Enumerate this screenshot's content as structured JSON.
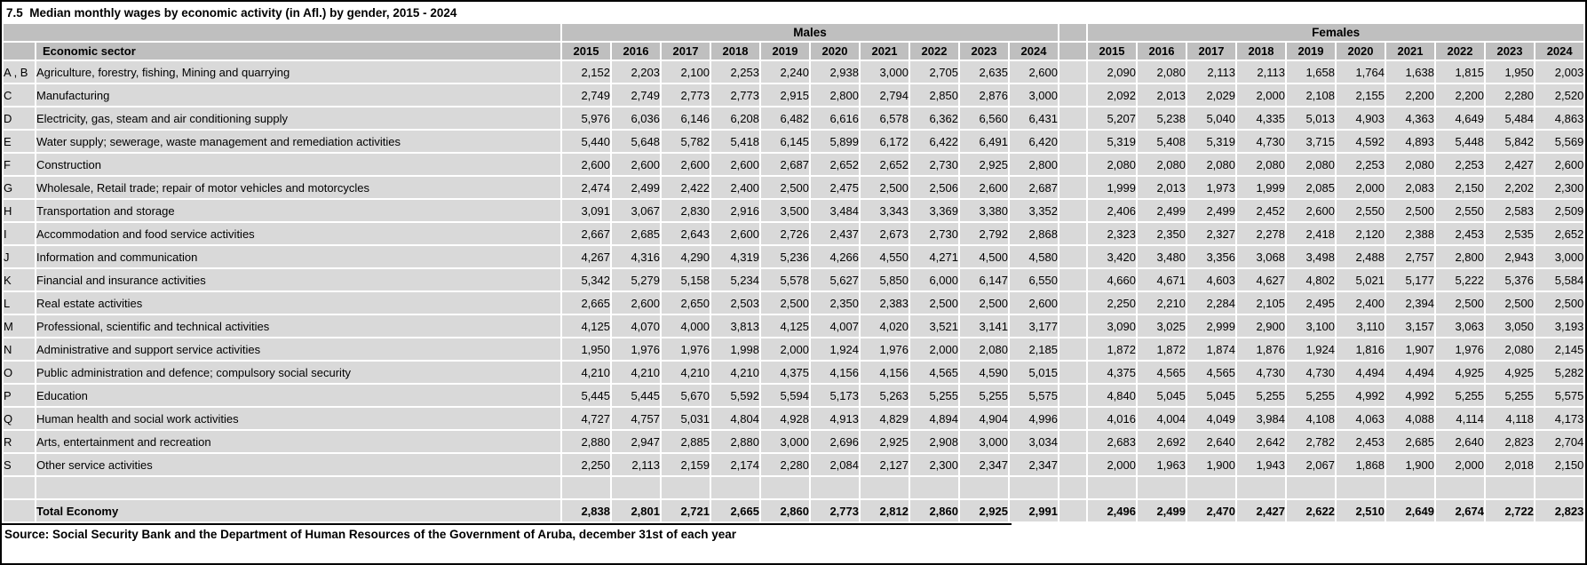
{
  "title": "7.5  Median monthly wages by economic activity (in Afl.) by gender, 2015 - 2024",
  "colors": {
    "header_fill": "#bfbfbf",
    "cell_fill": "#d9d9d9",
    "gridline": "#ffffff",
    "border": "#000000",
    "text": "#000000"
  },
  "table": {
    "sector_header": "Economic sector",
    "groups": {
      "males": "Males",
      "females": "Females"
    },
    "years": [
      "2015",
      "2016",
      "2017",
      "2018",
      "2019",
      "2020",
      "2021",
      "2022",
      "2023",
      "2024"
    ],
    "rows": [
      {
        "code": "A , B",
        "name": "Agriculture, forestry, fishing, Mining and quarrying",
        "males": [
          "2,152",
          "2,203",
          "2,100",
          "2,253",
          "2,240",
          "2,938",
          "3,000",
          "2,705",
          "2,635",
          "2,600"
        ],
        "females": [
          "2,090",
          "2,080",
          "2,113",
          "2,113",
          "1,658",
          "1,764",
          "1,638",
          "1,815",
          "1,950",
          "2,003"
        ]
      },
      {
        "code": "C",
        "name": "Manufacturing",
        "males": [
          "2,749",
          "2,749",
          "2,773",
          "2,773",
          "2,915",
          "2,800",
          "2,794",
          "2,850",
          "2,876",
          "3,000"
        ],
        "females": [
          "2,092",
          "2,013",
          "2,029",
          "2,000",
          "2,108",
          "2,155",
          "2,200",
          "2,200",
          "2,280",
          "2,520"
        ]
      },
      {
        "code": "D",
        "name": "Electricity, gas, steam and air conditioning supply",
        "males": [
          "5,976",
          "6,036",
          "6,146",
          "6,208",
          "6,482",
          "6,616",
          "6,578",
          "6,362",
          "6,560",
          "6,431"
        ],
        "females": [
          "5,207",
          "5,238",
          "5,040",
          "4,335",
          "5,013",
          "4,903",
          "4,363",
          "4,649",
          "5,484",
          "4,863"
        ]
      },
      {
        "code": "E",
        "name": "Water supply; sewerage, waste management and remediation activities",
        "males": [
          "5,440",
          "5,648",
          "5,782",
          "5,418",
          "6,145",
          "5,899",
          "6,172",
          "6,422",
          "6,491",
          "6,420"
        ],
        "females": [
          "5,319",
          "5,408",
          "5,319",
          "4,730",
          "3,715",
          "4,592",
          "4,893",
          "5,448",
          "5,842",
          "5,569"
        ]
      },
      {
        "code": "F",
        "name": "Construction",
        "males": [
          "2,600",
          "2,600",
          "2,600",
          "2,600",
          "2,687",
          "2,652",
          "2,652",
          "2,730",
          "2,925",
          "2,800"
        ],
        "females": [
          "2,080",
          "2,080",
          "2,080",
          "2,080",
          "2,080",
          "2,253",
          "2,080",
          "2,253",
          "2,427",
          "2,600"
        ]
      },
      {
        "code": "G",
        "name": "Wholesale, Retail trade; repair of motor vehicles and motorcycles",
        "males": [
          "2,474",
          "2,499",
          "2,422",
          "2,400",
          "2,500",
          "2,475",
          "2,500",
          "2,506",
          "2,600",
          "2,687"
        ],
        "females": [
          "1,999",
          "2,013",
          "1,973",
          "1,999",
          "2,085",
          "2,000",
          "2,083",
          "2,150",
          "2,202",
          "2,300"
        ]
      },
      {
        "code": "H",
        "name": "Transportation and storage",
        "males": [
          "3,091",
          "3,067",
          "2,830",
          "2,916",
          "3,500",
          "3,484",
          "3,343",
          "3,369",
          "3,380",
          "3,352"
        ],
        "females": [
          "2,406",
          "2,499",
          "2,499",
          "2,452",
          "2,600",
          "2,550",
          "2,500",
          "2,550",
          "2,583",
          "2,509"
        ]
      },
      {
        "code": "I",
        "name": "Accommodation and food service activities",
        "males": [
          "2,667",
          "2,685",
          "2,643",
          "2,600",
          "2,726",
          "2,437",
          "2,673",
          "2,730",
          "2,792",
          "2,868"
        ],
        "females": [
          "2,323",
          "2,350",
          "2,327",
          "2,278",
          "2,418",
          "2,120",
          "2,388",
          "2,453",
          "2,535",
          "2,652"
        ]
      },
      {
        "code": "J",
        "name": "Information and communication",
        "males": [
          "4,267",
          "4,316",
          "4,290",
          "4,319",
          "5,236",
          "4,266",
          "4,550",
          "4,271",
          "4,500",
          "4,580"
        ],
        "females": [
          "3,420",
          "3,480",
          "3,356",
          "3,068",
          "3,498",
          "2,488",
          "2,757",
          "2,800",
          "2,943",
          "3,000"
        ]
      },
      {
        "code": "K",
        "name": "Financial and insurance activities",
        "males": [
          "5,342",
          "5,279",
          "5,158",
          "5,234",
          "5,578",
          "5,627",
          "5,850",
          "6,000",
          "6,147",
          "6,550"
        ],
        "females": [
          "4,660",
          "4,671",
          "4,603",
          "4,627",
          "4,802",
          "5,021",
          "5,177",
          "5,222",
          "5,376",
          "5,584"
        ]
      },
      {
        "code": "L",
        "name": "Real estate activities",
        "males": [
          "2,665",
          "2,600",
          "2,650",
          "2,503",
          "2,500",
          "2,350",
          "2,383",
          "2,500",
          "2,500",
          "2,600"
        ],
        "females": [
          "2,250",
          "2,210",
          "2,284",
          "2,105",
          "2,495",
          "2,400",
          "2,394",
          "2,500",
          "2,500",
          "2,500"
        ]
      },
      {
        "code": "M",
        "name": "Professional, scientific and technical activities",
        "males": [
          "4,125",
          "4,070",
          "4,000",
          "3,813",
          "4,125",
          "4,007",
          "4,020",
          "3,521",
          "3,141",
          "3,177"
        ],
        "females": [
          "3,090",
          "3,025",
          "2,999",
          "2,900",
          "3,100",
          "3,110",
          "3,157",
          "3,063",
          "3,050",
          "3,193"
        ]
      },
      {
        "code": "N",
        "name": "Administrative and support service activities",
        "males": [
          "1,950",
          "1,976",
          "1,976",
          "1,998",
          "2,000",
          "1,924",
          "1,976",
          "2,000",
          "2,080",
          "2,185"
        ],
        "females": [
          "1,872",
          "1,872",
          "1,874",
          "1,876",
          "1,924",
          "1,816",
          "1,907",
          "1,976",
          "2,080",
          "2,145"
        ]
      },
      {
        "code": "O",
        "name": "Public administration and defence; compulsory social security",
        "males": [
          "4,210",
          "4,210",
          "4,210",
          "4,210",
          "4,375",
          "4,156",
          "4,156",
          "4,565",
          "4,590",
          "5,015"
        ],
        "females": [
          "4,375",
          "4,565",
          "4,565",
          "4,730",
          "4,730",
          "4,494",
          "4,494",
          "4,925",
          "4,925",
          "5,282"
        ]
      },
      {
        "code": "P",
        "name": "Education",
        "males": [
          "5,445",
          "5,445",
          "5,670",
          "5,592",
          "5,594",
          "5,173",
          "5,263",
          "5,255",
          "5,255",
          "5,575"
        ],
        "females": [
          "4,840",
          "5,045",
          "5,045",
          "5,255",
          "5,255",
          "4,992",
          "4,992",
          "5,255",
          "5,255",
          "5,575"
        ]
      },
      {
        "code": "Q",
        "name": "Human health and social work activities",
        "males": [
          "4,727",
          "4,757",
          "5,031",
          "4,804",
          "4,928",
          "4,913",
          "4,829",
          "4,894",
          "4,904",
          "4,996"
        ],
        "females": [
          "4,016",
          "4,004",
          "4,049",
          "3,984",
          "4,108",
          "4,063",
          "4,088",
          "4,114",
          "4,118",
          "4,173"
        ]
      },
      {
        "code": "R",
        "name": "Arts, entertainment and recreation",
        "males": [
          "2,880",
          "2,947",
          "2,885",
          "2,880",
          "3,000",
          "2,696",
          "2,925",
          "2,908",
          "3,000",
          "3,034"
        ],
        "females": [
          "2,683",
          "2,692",
          "2,640",
          "2,642",
          "2,782",
          "2,453",
          "2,685",
          "2,640",
          "2,823",
          "2,704"
        ]
      },
      {
        "code": "S",
        "name": "Other service activities",
        "males": [
          "2,250",
          "2,113",
          "2,159",
          "2,174",
          "2,280",
          "2,084",
          "2,127",
          "2,300",
          "2,347",
          "2,347"
        ],
        "females": [
          "2,000",
          "1,963",
          "1,900",
          "1,943",
          "2,067",
          "1,868",
          "1,900",
          "2,000",
          "2,018",
          "2,150"
        ]
      }
    ],
    "total": {
      "label": "Total Economy",
      "males": [
        "2,838",
        "2,801",
        "2,721",
        "2,665",
        "2,860",
        "2,773",
        "2,812",
        "2,860",
        "2,925",
        "2,991"
      ],
      "females": [
        "2,496",
        "2,499",
        "2,470",
        "2,427",
        "2,622",
        "2,510",
        "2,649",
        "2,674",
        "2,722",
        "2,823"
      ]
    }
  },
  "source": "Source: Social Security Bank and the Department of Human Resources of the Government of Aruba, december 31st of each year"
}
